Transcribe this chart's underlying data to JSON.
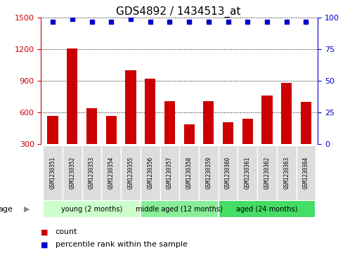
{
  "title": "GDS4892 / 1434513_at",
  "samples": [
    "GSM1230351",
    "GSM1230352",
    "GSM1230353",
    "GSM1230354",
    "GSM1230355",
    "GSM1230356",
    "GSM1230357",
    "GSM1230358",
    "GSM1230359",
    "GSM1230360",
    "GSM1230361",
    "GSM1230362",
    "GSM1230363",
    "GSM1230364"
  ],
  "counts": [
    570,
    1210,
    640,
    570,
    1000,
    920,
    710,
    490,
    710,
    510,
    540,
    760,
    880,
    700
  ],
  "percentile_ranks": [
    97,
    99,
    97,
    97,
    99,
    97,
    97,
    97,
    97,
    97,
    97,
    97,
    97,
    97
  ],
  "bar_color": "#cc0000",
  "dot_color": "#0000cc",
  "ylim_left": [
    300,
    1500
  ],
  "ylim_right": [
    0,
    100
  ],
  "yticks_left": [
    300,
    600,
    900,
    1200,
    1500
  ],
  "yticks_right": [
    0,
    25,
    50,
    75,
    100
  ],
  "groups": [
    {
      "label": "young (2 months)",
      "start": 0,
      "end": 4,
      "color": "#ccffcc"
    },
    {
      "label": "middle aged (12 months)",
      "start": 5,
      "end": 8,
      "color": "#88ee99"
    },
    {
      "label": "aged (24 months)",
      "start": 9,
      "end": 13,
      "color": "#44dd66"
    }
  ],
  "age_label": "age",
  "legend_items": [
    {
      "color": "#cc0000",
      "label": "count"
    },
    {
      "color": "#0000cc",
      "label": "percentile rank within the sample"
    }
  ],
  "background_color": "#ffffff",
  "plot_bg_color": "#ffffff",
  "grid_color": "#000000",
  "title_fontsize": 11,
  "tick_fontsize": 8,
  "label_fontsize": 8.5
}
